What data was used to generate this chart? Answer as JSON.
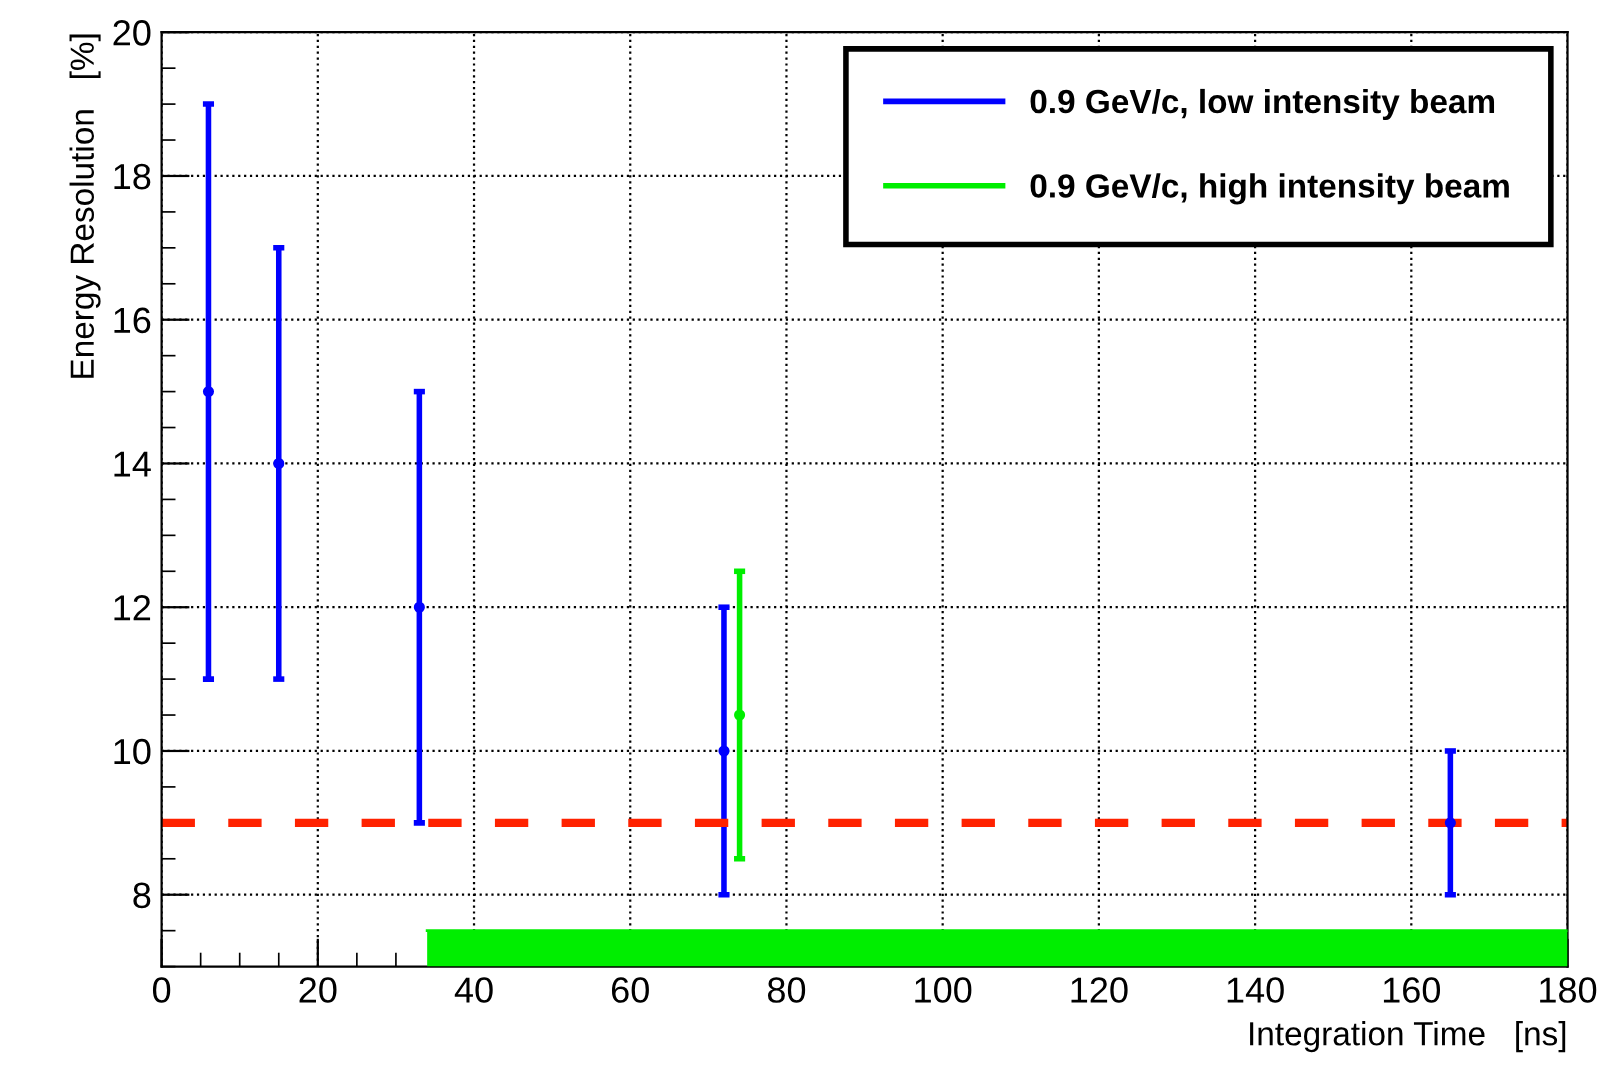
{
  "chart_data": {
    "type": "scatter",
    "xlabel": "Integration Time   [ns]",
    "ylabel": "Energy Resolution   [%]",
    "series": [
      {
        "name": "0.9 GeV/c, low intensity beam",
        "color": "#0000ff",
        "x": [
          6,
          15,
          33,
          72,
          165
        ],
        "values": [
          15,
          14,
          12,
          10,
          9
        ],
        "errors": [
          4,
          3,
          3,
          2,
          1
        ]
      },
      {
        "name": "0.9 GeV/c, high intensity beam",
        "color": "#00ee00",
        "x": [
          74
        ],
        "values": [
          10.5
        ],
        "errors": [
          2
        ]
      },
      {
        "type": "area",
        "color": "#00ee00",
        "x": [
          34,
          180
        ],
        "values": [
          7.5,
          7.5
        ],
        "marker": "none"
      }
    ],
    "ref_lines": [
      {
        "axis": "y",
        "value": 9,
        "color": "#ff2200",
        "line_style": "dashed"
      }
    ],
    "xlim": [
      0,
      180
    ],
    "xticks": [
      0,
      20,
      40,
      60,
      80,
      100,
      120,
      140,
      160,
      180
    ],
    "ylim": [
      7,
      20
    ],
    "yticks": [
      8,
      10,
      12,
      14,
      16,
      18,
      20
    ],
    "grid": true,
    "legend": "top right",
    "marker": "circle"
  }
}
